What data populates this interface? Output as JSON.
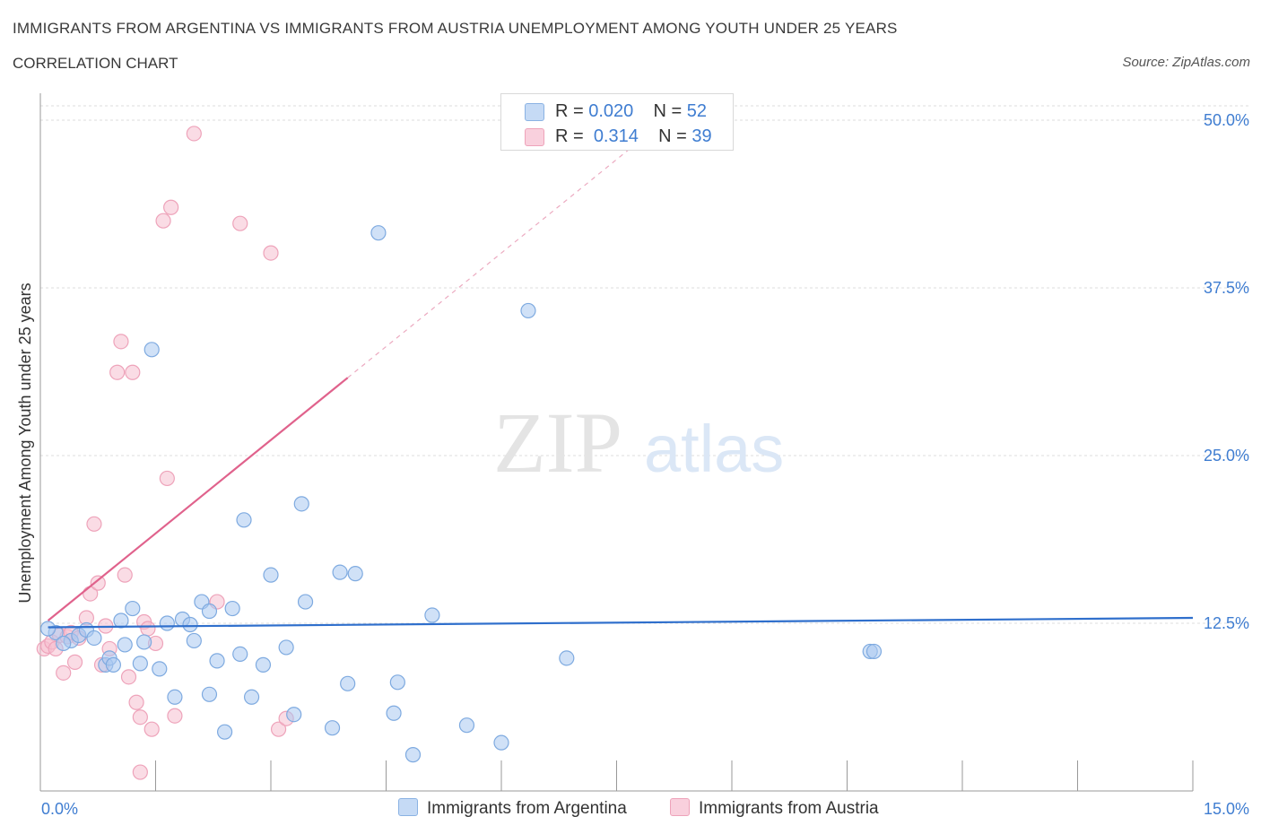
{
  "header": {
    "title": "IMMIGRANTS FROM ARGENTINA VS IMMIGRANTS FROM AUSTRIA UNEMPLOYMENT AMONG YOUTH UNDER 25 YEARS",
    "subtitle": "CORRELATION CHART",
    "source": "Source: ZipAtlas.com"
  },
  "watermark": {
    "zip": "ZIP",
    "atlas": "atlas"
  },
  "legend": {
    "argentina": {
      "r_label": "R =",
      "r_value": "0.020",
      "n_label": "N =",
      "n_value": "52"
    },
    "austria": {
      "r_label": "R =",
      "r_value": "0.314",
      "n_label": "N =",
      "n_value": "39"
    }
  },
  "colors": {
    "argentina_fill": "#aac8f0",
    "argentina_stroke": "#7eaae0",
    "argentina_line": "#2f6fcc",
    "austria_fill": "#f6c0d0",
    "austria_stroke": "#eea3ba",
    "austria_line": "#e0628c",
    "axis_text": "#3f7dd1",
    "grid": "#dcdcdc"
  },
  "chart_data": {
    "type": "scatter",
    "title": "IMMIGRANTS FROM ARGENTINA VS IMMIGRANTS FROM AUSTRIA UNEMPLOYMENT AMONG YOUTH UNDER 25 YEARS",
    "xlabel": "",
    "ylabel": "Unemployment Among Youth under 25 years",
    "xlim": [
      0,
      15
    ],
    "ylim": [
      0,
      50
    ],
    "x_tick_labels": [
      "0.0%",
      "15.0%"
    ],
    "y_ticks": [
      12.5,
      25.0,
      37.5,
      50.0
    ],
    "y_tick_labels": [
      "12.5%",
      "25.0%",
      "37.5%",
      "50.0%"
    ],
    "grid": true,
    "series": [
      {
        "name": "Immigrants from Argentina",
        "r": 0.02,
        "n": 52,
        "trend": {
          "x0": 0.1,
          "y0": 12.2,
          "x1": 15.0,
          "y1": 12.9
        },
        "points": [
          [
            0.2,
            11.8
          ],
          [
            0.4,
            11.2
          ],
          [
            0.5,
            11.6
          ],
          [
            0.6,
            12.0
          ],
          [
            0.7,
            11.4
          ],
          [
            0.85,
            9.4
          ],
          [
            0.9,
            9.9
          ],
          [
            0.95,
            9.4
          ],
          [
            1.05,
            12.7
          ],
          [
            1.1,
            10.9
          ],
          [
            1.2,
            13.6
          ],
          [
            1.3,
            9.5
          ],
          [
            1.35,
            11.1
          ],
          [
            1.45,
            32.9
          ],
          [
            1.55,
            9.1
          ],
          [
            1.65,
            12.5
          ],
          [
            1.75,
            7.0
          ],
          [
            1.85,
            12.8
          ],
          [
            1.95,
            12.4
          ],
          [
            2.0,
            11.2
          ],
          [
            2.1,
            14.1
          ],
          [
            2.2,
            13.4
          ],
          [
            2.2,
            7.2
          ],
          [
            2.3,
            9.7
          ],
          [
            2.4,
            4.4
          ],
          [
            2.5,
            13.6
          ],
          [
            2.6,
            10.2
          ],
          [
            2.65,
            20.2
          ],
          [
            2.75,
            7.0
          ],
          [
            2.9,
            9.4
          ],
          [
            3.0,
            16.1
          ],
          [
            3.2,
            10.7
          ],
          [
            3.3,
            5.7
          ],
          [
            3.4,
            21.4
          ],
          [
            3.45,
            14.1
          ],
          [
            3.8,
            4.7
          ],
          [
            3.9,
            16.3
          ],
          [
            4.0,
            8.0
          ],
          [
            4.1,
            16.2
          ],
          [
            4.4,
            41.6
          ],
          [
            4.6,
            5.8
          ],
          [
            4.65,
            8.1
          ],
          [
            4.85,
            2.7
          ],
          [
            5.1,
            13.1
          ],
          [
            5.55,
            4.9
          ],
          [
            6.0,
            3.6
          ],
          [
            6.35,
            35.8
          ],
          [
            6.85,
            9.9
          ],
          [
            10.8,
            10.4
          ],
          [
            10.85,
            10.4
          ],
          [
            0.1,
            12.1
          ],
          [
            0.3,
            11.0
          ]
        ]
      },
      {
        "name": "Immigrants from Austria",
        "r": 0.314,
        "n": 39,
        "trend_solid": {
          "x0": 0.1,
          "y0": 12.7,
          "x1": 4.0,
          "y1": 30.8
        },
        "trend_dashed": {
          "x0": 4.0,
          "y0": 30.8,
          "x1": 7.7,
          "y1": 48.0
        },
        "points": [
          [
            0.05,
            10.6
          ],
          [
            0.1,
            10.8
          ],
          [
            0.15,
            11.1
          ],
          [
            0.2,
            10.6
          ],
          [
            0.25,
            11.6
          ],
          [
            0.3,
            8.8
          ],
          [
            0.35,
            11.5
          ],
          [
            0.4,
            11.8
          ],
          [
            0.45,
            9.6
          ],
          [
            0.5,
            11.4
          ],
          [
            0.6,
            12.9
          ],
          [
            0.65,
            14.7
          ],
          [
            0.7,
            19.9
          ],
          [
            0.75,
            15.5
          ],
          [
            0.85,
            12.3
          ],
          [
            0.8,
            9.4
          ],
          [
            0.9,
            10.6
          ],
          [
            1.0,
            31.2
          ],
          [
            1.05,
            33.5
          ],
          [
            1.1,
            16.1
          ],
          [
            1.15,
            8.5
          ],
          [
            1.2,
            31.2
          ],
          [
            1.25,
            6.6
          ],
          [
            1.3,
            5.5
          ],
          [
            1.35,
            12.6
          ],
          [
            1.4,
            12.1
          ],
          [
            1.45,
            4.6
          ],
          [
            1.5,
            11.0
          ],
          [
            1.6,
            42.5
          ],
          [
            1.65,
            23.3
          ],
          [
            1.7,
            43.5
          ],
          [
            1.75,
            5.6
          ],
          [
            2.0,
            49.0
          ],
          [
            2.3,
            14.1
          ],
          [
            2.6,
            42.3
          ],
          [
            3.0,
            40.1
          ],
          [
            3.1,
            4.6
          ],
          [
            3.2,
            5.4
          ],
          [
            1.3,
            1.4
          ]
        ]
      }
    ],
    "legend_position": "top-center",
    "bottom_legend": [
      "Immigrants from Argentina",
      "Immigrants from Austria"
    ]
  }
}
